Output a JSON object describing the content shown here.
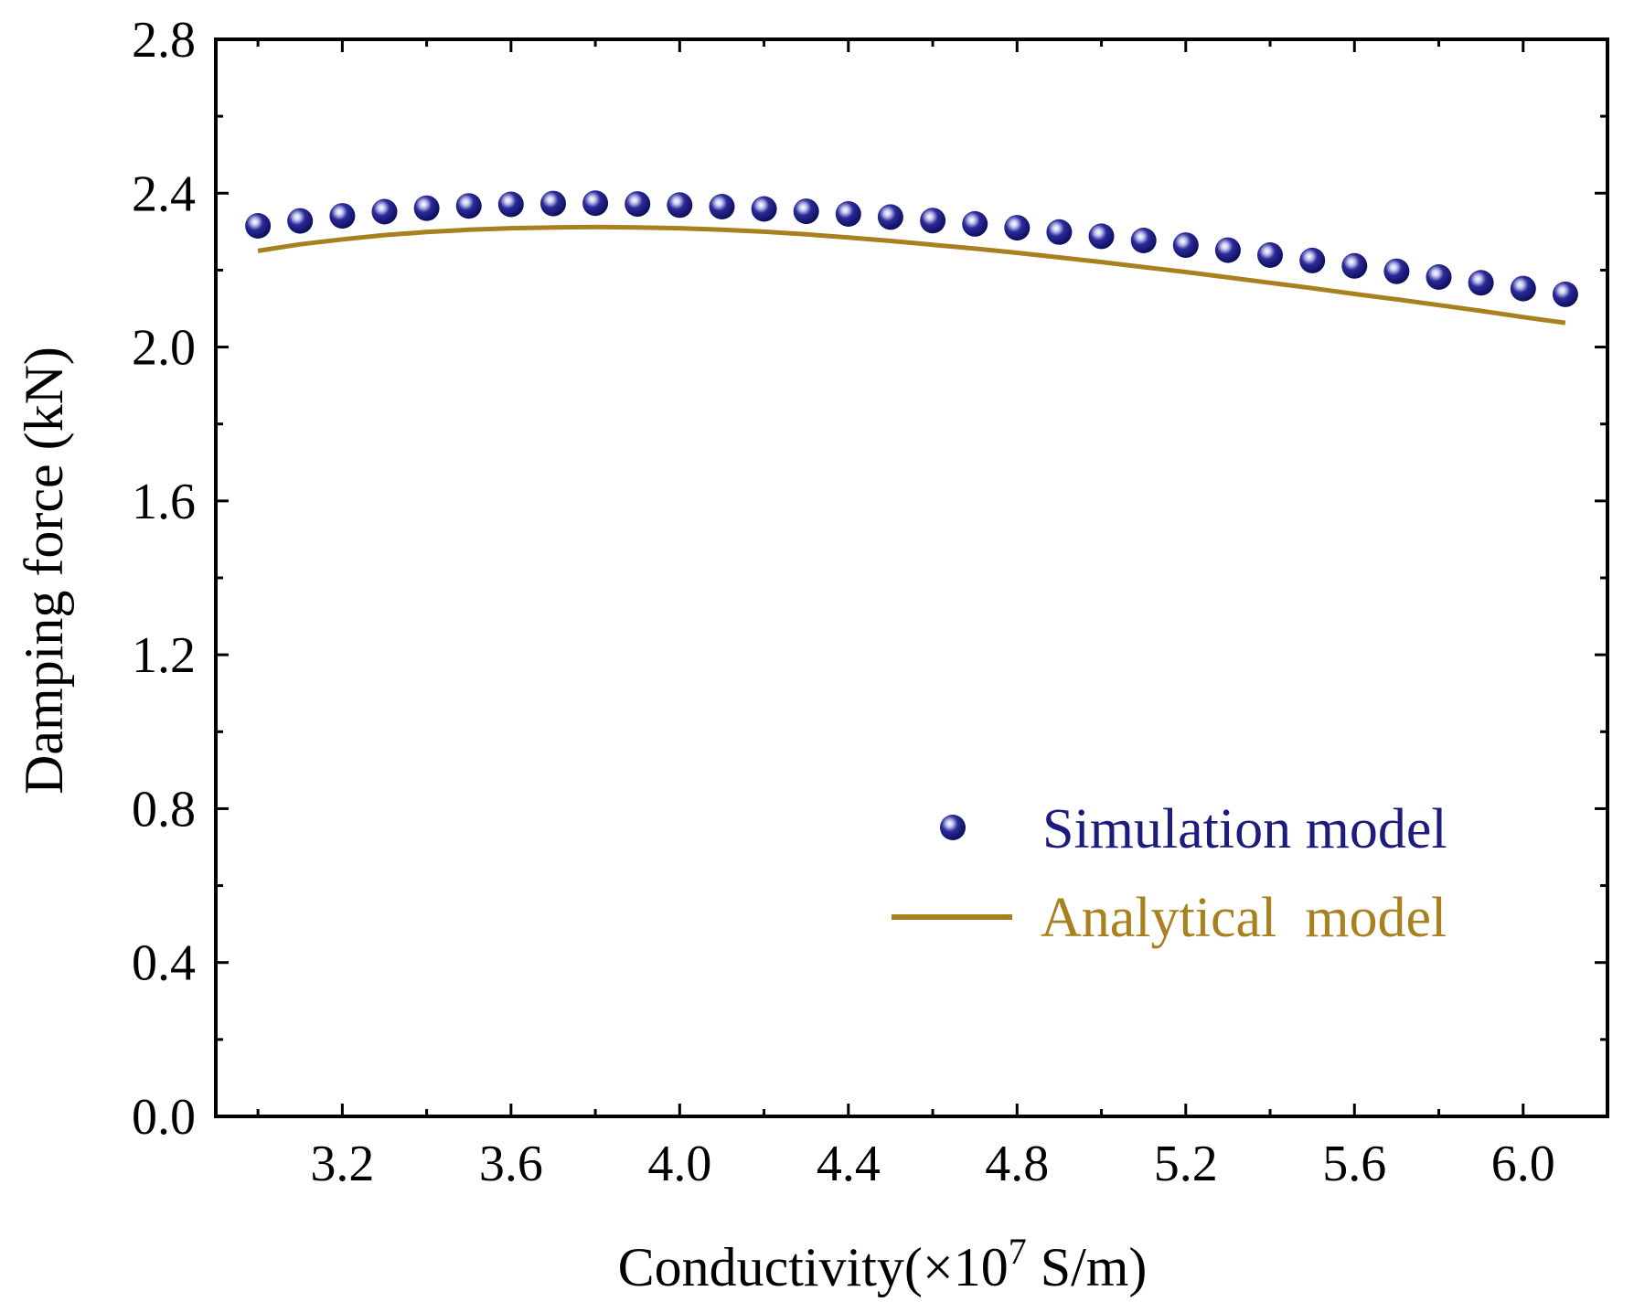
{
  "chart_data": {
    "type": "scatter",
    "title": "",
    "xlabel_main": "Conductivity(×10",
    "xlabel_sup": "7",
    "xlabel_unit": " S/m)",
    "ylabel": "Damping force (kN)",
    "xlim": [
      2.9,
      6.2
    ],
    "ylim": [
      0.0,
      2.8
    ],
    "x_ticks": [
      3.2,
      3.6,
      4.0,
      4.4,
      4.8,
      5.2,
      5.6,
      6.0
    ],
    "x_tick_labels": [
      "3.2",
      "3.6",
      "4.0",
      "4.4",
      "4.8",
      "5.2",
      "5.6",
      "6.0"
    ],
    "y_ticks": [
      0.0,
      0.4,
      0.8,
      1.2,
      1.6,
      2.0,
      2.4,
      2.8
    ],
    "y_tick_labels": [
      "0.0",
      "0.4",
      "0.8",
      "1.2",
      "1.6",
      "2.0",
      "2.4",
      "2.8"
    ],
    "grid": false,
    "legend_position": "bottom-right",
    "series": [
      {
        "name": "Simulation model",
        "kind": "scatter",
        "color": "#1c1c7e",
        "x": [
          3.0,
          3.1,
          3.2,
          3.3,
          3.4,
          3.5,
          3.6,
          3.7,
          3.8,
          3.9,
          4.0,
          4.1,
          4.2,
          4.3,
          4.4,
          4.5,
          4.6,
          4.7,
          4.8,
          4.9,
          5.0,
          5.1,
          5.2,
          5.3,
          5.4,
          5.5,
          5.6,
          5.7,
          5.8,
          5.9,
          6.0,
          6.1
        ],
        "y": [
          2.315,
          2.328,
          2.341,
          2.352,
          2.361,
          2.367,
          2.371,
          2.373,
          2.374,
          2.372,
          2.369,
          2.365,
          2.359,
          2.353,
          2.346,
          2.338,
          2.329,
          2.32,
          2.31,
          2.299,
          2.288,
          2.277,
          2.265,
          2.252,
          2.239,
          2.225,
          2.211,
          2.197,
          2.182,
          2.167,
          2.152,
          2.137
        ]
      },
      {
        "name": "Analytical  model",
        "kind": "line",
        "color": "#a8801e",
        "x": [
          3.0,
          3.1,
          3.2,
          3.3,
          3.4,
          3.5,
          3.6,
          3.7,
          3.8,
          3.9,
          4.0,
          4.1,
          4.2,
          4.3,
          4.4,
          4.5,
          4.6,
          4.7,
          4.8,
          4.9,
          5.0,
          5.1,
          5.2,
          5.3,
          5.4,
          5.5,
          5.6,
          5.7,
          5.8,
          5.9,
          6.0,
          6.1
        ],
        "y": [
          2.25,
          2.267,
          2.28,
          2.291,
          2.299,
          2.305,
          2.309,
          2.311,
          2.312,
          2.311,
          2.309,
          2.305,
          2.3,
          2.293,
          2.285,
          2.276,
          2.266,
          2.256,
          2.245,
          2.233,
          2.221,
          2.208,
          2.195,
          2.181,
          2.167,
          2.153,
          2.138,
          2.124,
          2.109,
          2.094,
          2.078,
          2.063
        ]
      }
    ]
  }
}
